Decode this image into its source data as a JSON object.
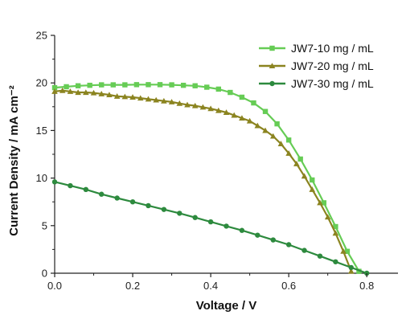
{
  "chart_data": {
    "type": "line",
    "xlabel": "Voltage / V",
    "ylabel": "Current Density / mA cm⁻²",
    "xlim": [
      0,
      0.88
    ],
    "ylim": [
      0,
      25
    ],
    "x_ticks": [
      0.0,
      0.2,
      0.4,
      0.6,
      0.8
    ],
    "x_tick_labels": [
      "0.0",
      "0.2",
      "0.4",
      "0.6",
      "0.8"
    ],
    "y_ticks": [
      0,
      5,
      10,
      15,
      20,
      25
    ],
    "y_tick_labels": [
      "0",
      "5",
      "10",
      "15",
      "20",
      "25"
    ],
    "legend_position": "top-right",
    "series": [
      {
        "name": "JW7-10 mg / mL",
        "color": "#66cc55",
        "marker": "square",
        "points": [
          [
            0,
            19.5
          ],
          [
            0.03,
            19.6
          ],
          [
            0.06,
            19.7
          ],
          [
            0.09,
            19.75
          ],
          [
            0.12,
            19.8
          ],
          [
            0.15,
            19.8
          ],
          [
            0.18,
            19.8
          ],
          [
            0.21,
            19.82
          ],
          [
            0.24,
            19.82
          ],
          [
            0.27,
            19.82
          ],
          [
            0.3,
            19.8
          ],
          [
            0.33,
            19.75
          ],
          [
            0.36,
            19.7
          ],
          [
            0.39,
            19.55
          ],
          [
            0.42,
            19.35
          ],
          [
            0.45,
            19.0
          ],
          [
            0.48,
            18.5
          ],
          [
            0.51,
            17.9
          ],
          [
            0.54,
            17.0
          ],
          [
            0.57,
            15.7
          ],
          [
            0.6,
            14.0
          ],
          [
            0.63,
            12.0
          ],
          [
            0.66,
            9.8
          ],
          [
            0.69,
            7.4
          ],
          [
            0.72,
            4.9
          ],
          [
            0.75,
            2.3
          ],
          [
            0.78,
            0.2
          ]
        ]
      },
      {
        "name": "JW7-20 mg / mL",
        "color": "#8b8420",
        "marker": "triangle",
        "points": [
          [
            0,
            19.1
          ],
          [
            0.02,
            19.2
          ],
          [
            0.04,
            19.1
          ],
          [
            0.06,
            19.0
          ],
          [
            0.08,
            19.0
          ],
          [
            0.1,
            18.95
          ],
          [
            0.12,
            18.85
          ],
          [
            0.14,
            18.75
          ],
          [
            0.16,
            18.6
          ],
          [
            0.18,
            18.55
          ],
          [
            0.2,
            18.5
          ],
          [
            0.22,
            18.4
          ],
          [
            0.24,
            18.3
          ],
          [
            0.26,
            18.2
          ],
          [
            0.28,
            18.1
          ],
          [
            0.3,
            18.0
          ],
          [
            0.32,
            17.85
          ],
          [
            0.34,
            17.7
          ],
          [
            0.36,
            17.6
          ],
          [
            0.38,
            17.45
          ],
          [
            0.4,
            17.3
          ],
          [
            0.42,
            17.1
          ],
          [
            0.44,
            16.9
          ],
          [
            0.46,
            16.6
          ],
          [
            0.48,
            16.3
          ],
          [
            0.5,
            16.0
          ],
          [
            0.52,
            15.5
          ],
          [
            0.54,
            15.0
          ],
          [
            0.56,
            14.4
          ],
          [
            0.58,
            13.6
          ],
          [
            0.6,
            12.6
          ],
          [
            0.62,
            11.5
          ],
          [
            0.64,
            10.2
          ],
          [
            0.66,
            8.8
          ],
          [
            0.68,
            7.4
          ],
          [
            0.7,
            5.9
          ],
          [
            0.72,
            4.2
          ],
          [
            0.74,
            2.3
          ],
          [
            0.76,
            0.2
          ]
        ]
      },
      {
        "name": "JW7-30 mg / mL",
        "color": "#2d8a3e",
        "marker": "circle",
        "points": [
          [
            0,
            9.6
          ],
          [
            0.04,
            9.2
          ],
          [
            0.08,
            8.8
          ],
          [
            0.12,
            8.3
          ],
          [
            0.16,
            7.9
          ],
          [
            0.2,
            7.5
          ],
          [
            0.24,
            7.1
          ],
          [
            0.28,
            6.7
          ],
          [
            0.32,
            6.3
          ],
          [
            0.36,
            5.85
          ],
          [
            0.4,
            5.4
          ],
          [
            0.44,
            4.95
          ],
          [
            0.48,
            4.5
          ],
          [
            0.52,
            4.0
          ],
          [
            0.56,
            3.5
          ],
          [
            0.6,
            3.0
          ],
          [
            0.64,
            2.4
          ],
          [
            0.68,
            1.8
          ],
          [
            0.72,
            1.2
          ],
          [
            0.76,
            0.6
          ],
          [
            0.8,
            0.0
          ]
        ]
      }
    ]
  }
}
